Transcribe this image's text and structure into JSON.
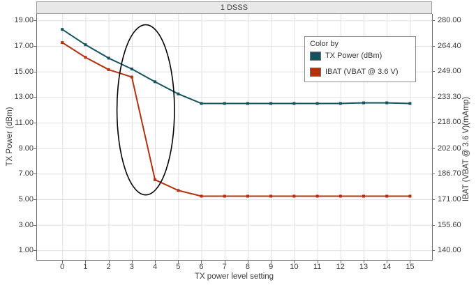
{
  "chart_data": {
    "type": "line",
    "title": "1 DSSS",
    "xlabel": "TX power level setting",
    "ylabel_left": "TX Power (dBm)",
    "ylabel_right": "IBAT (VBAT @ 3.6 V)(mAmp)",
    "x": [
      0,
      1,
      2,
      3,
      4,
      5,
      6,
      7,
      8,
      9,
      10,
      11,
      12,
      13,
      14,
      15
    ],
    "x_tick_labels": [
      "0",
      "1",
      "2",
      "3",
      "4",
      "5",
      "6",
      "7",
      "8",
      "9",
      "10",
      "11",
      "12",
      "13",
      "14",
      "15"
    ],
    "x_range": [
      -1.12,
      15.95
    ],
    "grid": true,
    "left_axis": {
      "tick_values": [
        19,
        17,
        15,
        13,
        11,
        9,
        7,
        5,
        3,
        1
      ],
      "tick_labels": [
        "19.00",
        "17.00",
        "15.00",
        "13.00",
        "11.00",
        "9.00",
        "7.00",
        "5.00",
        "3.00",
        "1.00"
      ],
      "range": [
        0.25,
        19.51
      ]
    },
    "right_axis": {
      "tick_values": [
        280,
        264.4,
        249,
        233.3,
        218,
        202,
        186.7,
        171,
        155.6,
        140
      ],
      "tick_labels": [
        "280.00",
        "264.40",
        "249.00",
        "233.30",
        "218.00",
        "202.00",
        "186.70",
        "171.00",
        "155.60",
        "140.00"
      ],
      "range": [
        134.2,
        283.9
      ]
    },
    "series": [
      {
        "name": "TX Power (dBm)",
        "axis": "left",
        "color": "#15535F",
        "marker": "square",
        "values": [
          18.3,
          17.1,
          16.05,
          15.2,
          14.2,
          13.25,
          12.5,
          12.5,
          12.5,
          12.5,
          12.5,
          12.5,
          12.5,
          12.55,
          12.55,
          12.5
        ]
      },
      {
        "name": "IBAT (VBAT @ 3.6 V)",
        "axis": "right",
        "color": "#B33110",
        "marker": "square",
        "values": [
          266.5,
          257.5,
          250.0,
          245.5,
          183.0,
          176.5,
          173.0,
          173.0,
          173.0,
          173.0,
          173.0,
          173.0,
          173.0,
          173.0,
          173.0,
          173.0
        ]
      }
    ],
    "legend": {
      "title": "Color by",
      "position": "top-right"
    },
    "annotations": [
      {
        "type": "ellipse",
        "axis": "left",
        "cx": 3.6,
        "cy": 12.0,
        "rx": 1.24,
        "ry": 6.66,
        "color": "#000000",
        "stroke_width": 1.6
      }
    ]
  },
  "colors": {
    "grid": "#e1e1e1",
    "axis": "#6a6a6a",
    "tick": "#707070",
    "strip_bg": "#e8e8e8",
    "strip_border": "#9b9b9b",
    "text": "#3b3b3b",
    "background": "#ffffff"
  }
}
